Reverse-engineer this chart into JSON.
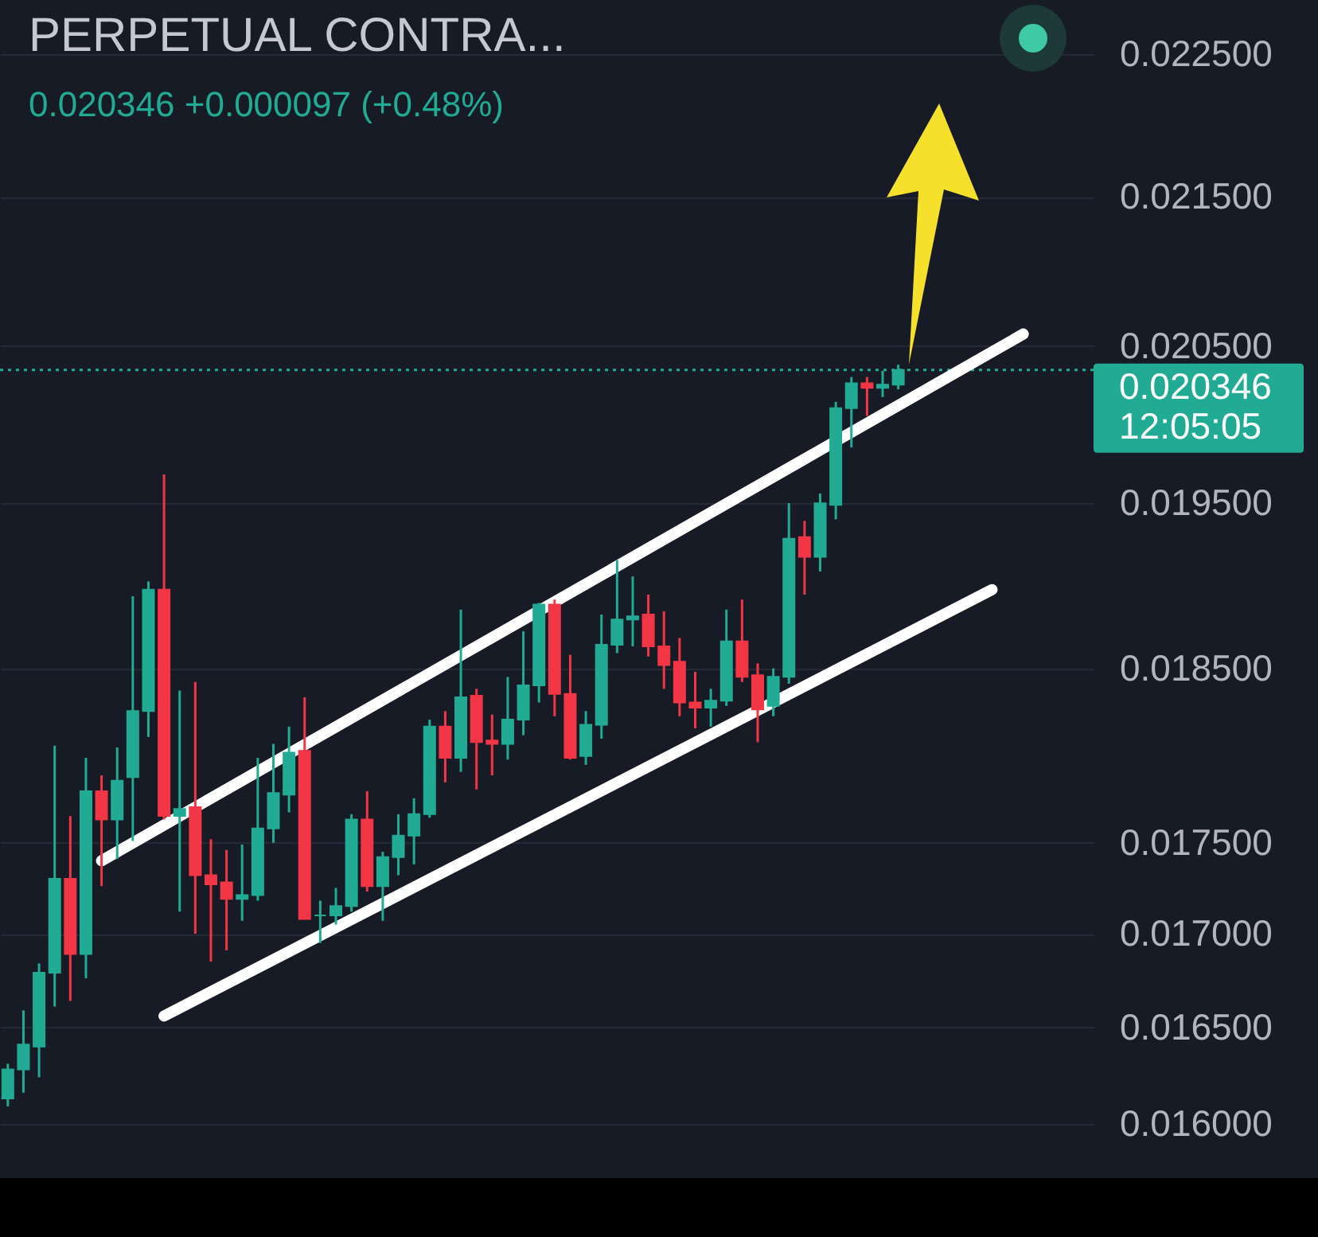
{
  "chart_data": {
    "type": "candlestick",
    "title": "PERPETUAL CONTRA...",
    "subtitle": "0.020346 +0.000097 (+0.48%)",
    "categories": [
      null,
      null,
      null,
      null,
      null,
      null,
      null,
      null,
      null,
      null,
      null,
      null,
      null,
      null,
      null,
      null,
      null,
      null,
      null,
      null,
      null,
      null,
      null,
      null,
      null,
      null,
      null,
      null,
      null,
      null,
      null,
      null,
      null,
      null,
      null,
      null,
      null,
      null,
      null,
      null,
      null,
      null,
      null,
      null,
      null,
      null,
      null,
      null,
      null,
      null,
      null,
      null,
      null,
      null,
      null,
      null,
      null,
      null,
      null,
      null,
      null,
      null,
      null,
      null,
      null,
      null,
      null,
      null,
      null,
      null
    ],
    "ohlc": [
      [
        0.01613,
        0.01631,
        0.01609,
        0.01628
      ],
      [
        0.01628,
        0.01659,
        0.01616,
        0.01641
      ],
      [
        0.0164,
        0.01684,
        0.01624,
        0.01679
      ],
      [
        0.01679,
        0.01805,
        0.01661,
        0.0173
      ],
      [
        0.0173,
        0.01765,
        0.01664,
        0.01689
      ],
      [
        0.01689,
        0.01798,
        0.01676,
        0.01779
      ],
      [
        0.01779,
        0.01788,
        0.01726,
        0.01763
      ],
      [
        0.01763,
        0.01804,
        0.01741,
        0.01785
      ],
      [
        0.01787,
        0.01893,
        0.01751,
        0.01825
      ],
      [
        0.01825,
        0.01902,
        0.0181,
        0.01897
      ],
      [
        0.01897,
        0.01968,
        0.01763,
        0.01765
      ],
      [
        0.01765,
        0.01837,
        0.01712,
        0.01769
      ],
      [
        0.0177,
        0.01842,
        0.017,
        0.01732
      ],
      [
        0.01732,
        0.01752,
        0.01685,
        0.01727
      ],
      [
        0.01728,
        0.01746,
        0.01691,
        0.01719
      ],
      [
        0.01719,
        0.01749,
        0.01707,
        0.01721
      ],
      [
        0.01721,
        0.01798,
        0.01718,
        0.01758
      ],
      [
        0.01758,
        0.01806,
        0.0175,
        0.01778
      ],
      [
        0.01777,
        0.01816,
        0.01767,
        0.01801
      ],
      [
        0.01802,
        0.01833,
        0.01708,
        0.01708
      ],
      [
        0.0171,
        0.01718,
        0.01695,
        0.0171
      ],
      [
        0.0171,
        0.01725,
        0.01705,
        0.01715
      ],
      [
        0.01715,
        0.01766,
        0.01712,
        0.01763
      ],
      [
        0.01763,
        0.01779,
        0.01723,
        0.01726
      ],
      [
        0.01726,
        0.01745,
        0.01707,
        0.01742
      ],
      [
        0.01742,
        0.01766,
        0.01732,
        0.01754
      ],
      [
        0.01754,
        0.01775,
        0.01738,
        0.01766
      ],
      [
        0.01766,
        0.0182,
        0.01764,
        0.01816
      ],
      [
        0.01816,
        0.01825,
        0.01784,
        0.01798
      ],
      [
        0.01798,
        0.01885,
        0.0179,
        0.01833
      ],
      [
        0.01834,
        0.01838,
        0.0178,
        0.01807
      ],
      [
        0.01808,
        0.01823,
        0.01788,
        0.01806
      ],
      [
        0.01806,
        0.01845,
        0.01797,
        0.0182
      ],
      [
        0.0182,
        0.01872,
        0.01811,
        0.0184
      ],
      [
        0.0184,
        0.01889,
        0.0183,
        0.01888
      ],
      [
        0.01888,
        0.01891,
        0.01822,
        0.01835
      ],
      [
        0.01835,
        0.01858,
        0.01797,
        0.01798
      ],
      [
        0.01799,
        0.01825,
        0.01794,
        0.01817
      ],
      [
        0.01817,
        0.01882,
        0.01809,
        0.01864
      ],
      [
        0.01864,
        0.01915,
        0.01859,
        0.01879
      ],
      [
        0.01879,
        0.01905,
        0.01863,
        0.01881
      ],
      [
        0.01882,
        0.01894,
        0.01857,
        0.01863
      ],
      [
        0.01863,
        0.01884,
        0.01838,
        0.01852
      ],
      [
        0.01854,
        0.01868,
        0.01822,
        0.0183
      ],
      [
        0.0183,
        0.01848,
        0.01815,
        0.01827
      ],
      [
        0.01827,
        0.01838,
        0.01816,
        0.01831
      ],
      [
        0.01831,
        0.01885,
        0.01828,
        0.01866
      ],
      [
        0.01866,
        0.01891,
        0.01842,
        0.01845
      ],
      [
        0.01846,
        0.01853,
        0.01807,
        0.01826
      ],
      [
        0.01828,
        0.0185,
        0.01822,
        0.01845
      ],
      [
        0.01845,
        0.0195,
        0.01841,
        0.01928
      ],
      [
        0.01929,
        0.01939,
        0.01894,
        0.01917
      ],
      [
        0.01917,
        0.01956,
        0.01908,
        0.0195
      ],
      [
        0.01949,
        0.02014,
        0.0194,
        0.0201
      ],
      [
        0.0201,
        0.0203,
        0.01985,
        0.02026
      ],
      [
        0.02026,
        0.0203,
        0.02005,
        0.02023
      ],
      [
        0.02023,
        0.02034,
        0.02017,
        0.02025
      ],
      [
        0.02025,
        0.02038,
        0.02022,
        0.020346
      ],
      null,
      null,
      null,
      null,
      null,
      null,
      null,
      null,
      null,
      null,
      null,
      null
    ],
    "colors": [
      "#22ab94",
      "#22ab94",
      "#22ab94",
      "#22ab94",
      "#f23645",
      "#22ab94",
      "#f23645",
      "#22ab94",
      "#22ab94",
      "#22ab94",
      "#f23645",
      "#22ab94",
      "#f23645",
      "#f23645",
      "#f23645",
      "#22ab94",
      "#22ab94",
      "#22ab94",
      "#22ab94",
      "#f23645",
      "#22ab94",
      "#22ab94",
      "#22ab94",
      "#f23645",
      "#22ab94",
      "#22ab94",
      "#22ab94",
      "#22ab94",
      "#f23645",
      "#22ab94",
      "#f23645",
      "#f23645",
      "#22ab94",
      "#22ab94",
      "#22ab94",
      "#f23645",
      "#f23645",
      "#22ab94",
      "#22ab94",
      "#22ab94",
      "#22ab94",
      "#f23645",
      "#f23645",
      "#f23645",
      "#f23645",
      "#22ab94",
      "#22ab94",
      "#f23645",
      "#f23645",
      "#22ab94",
      "#22ab94",
      "#f23645",
      "#22ab94",
      "#22ab94",
      "#22ab94",
      "#f23645",
      "#22ab94",
      "#22ab94",
      null,
      null,
      null,
      null,
      null,
      null,
      null,
      null,
      null,
      null,
      null,
      null
    ],
    "series": [
      {
        "type": "line",
        "color": "#ffffff",
        "values": [
          null,
          null,
          null,
          null,
          null,
          null,
          0.0174,
          null,
          null,
          null,
          null,
          null,
          null,
          null,
          null,
          null,
          null,
          null,
          null,
          null,
          null,
          null,
          null,
          null,
          null,
          null,
          null,
          null,
          null,
          null,
          null,
          null,
          null,
          null,
          null,
          null,
          null,
          null,
          null,
          null,
          null,
          null,
          null,
          null,
          null,
          null,
          null,
          null,
          null,
          null,
          null,
          null,
          null,
          null,
          null,
          null,
          null,
          null,
          null,
          null,
          null,
          null,
          null,
          null,
          null,
          0.02058,
          null,
          null,
          null,
          null
        ]
      },
      {
        "type": "line",
        "color": "#ffffff",
        "values": [
          null,
          null,
          null,
          null,
          null,
          null,
          null,
          null,
          null,
          null,
          0.01656,
          null,
          null,
          null,
          null,
          null,
          null,
          null,
          null,
          null,
          null,
          null,
          null,
          null,
          null,
          null,
          null,
          null,
          null,
          null,
          null,
          null,
          null,
          null,
          null,
          null,
          null,
          null,
          null,
          null,
          null,
          null,
          null,
          null,
          null,
          null,
          null,
          null,
          null,
          null,
          null,
          null,
          null,
          null,
          null,
          null,
          null,
          null,
          null,
          null,
          null,
          null,
          null,
          0.01897,
          null,
          null,
          null,
          null,
          null,
          null
        ]
      }
    ],
    "log": true,
    "ylim": [
      0.016,
      0.0225
    ],
    "yticks": [
      {
        "value": 0.016,
        "label": "0.016000"
      },
      {
        "value": 0.0165,
        "label": "0.016500"
      },
      {
        "value": 0.017,
        "label": "0.017000"
      },
      {
        "value": 0.0175,
        "label": "0.017500"
      },
      {
        "value": 0.0185,
        "label": "0.018500"
      },
      {
        "value": 0.0195,
        "label": "0.019500"
      },
      {
        "value": 0.0205,
        "label": "0.020500"
      },
      {
        "value": 0.0215,
        "label": "0.021500"
      },
      {
        "value": 0.0225,
        "label": "0.022500"
      }
    ],
    "grid": "y",
    "ref_lines": [
      {
        "axis": "y",
        "value": 0.020346,
        "label": "0.020346\n12:05:05",
        "color": "#22ab94",
        "line_style": "dotted"
      }
    ]
  }
}
